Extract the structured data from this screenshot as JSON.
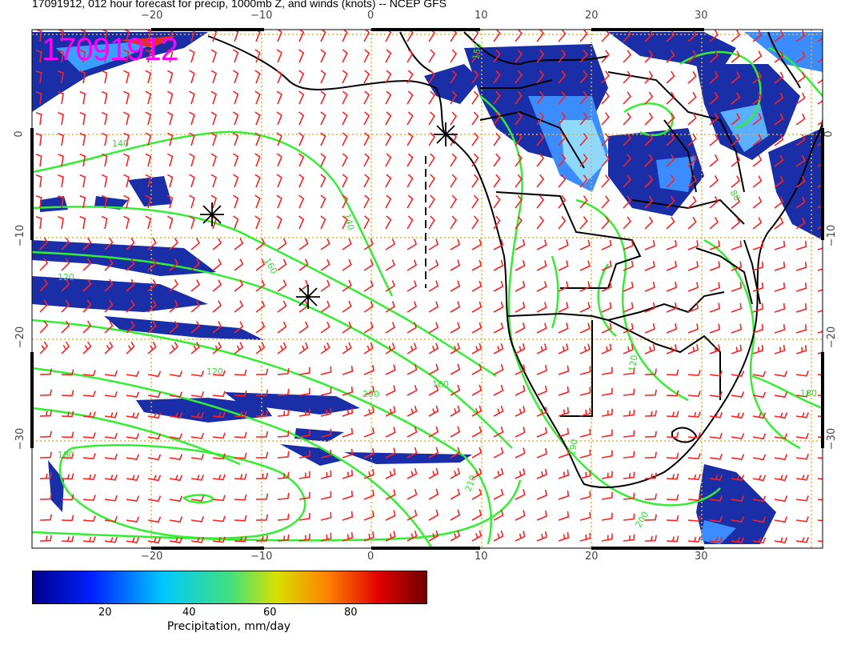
{
  "title": "17091912, 012 hour forecast for precip, 1000mb Z, and winds (knots) -- NCEP GFS",
  "stamp": "17091912",
  "axes": {
    "lon_labels": [
      "−20",
      "−10",
      "0",
      "10",
      "20",
      "30"
    ],
    "lat_labels": [
      "0",
      "−10",
      "−20",
      "−30"
    ]
  },
  "colorbar": {
    "labels": [
      "20",
      "40",
      "60",
      "80"
    ],
    "title": "Precipitation, mm/day"
  },
  "contour_labels": [
    "140",
    "140",
    "160",
    "120",
    "120",
    "180",
    "190",
    "150",
    "180",
    "210",
    "200",
    "200",
    "180",
    "80",
    "120"
  ],
  "colors": {
    "precip_low": "#1a2ea8",
    "contour": "#33ee33",
    "barb": "#ff2020",
    "coast": "#000000",
    "stamp": "#ff00ff",
    "grid": "#e0b030"
  }
}
